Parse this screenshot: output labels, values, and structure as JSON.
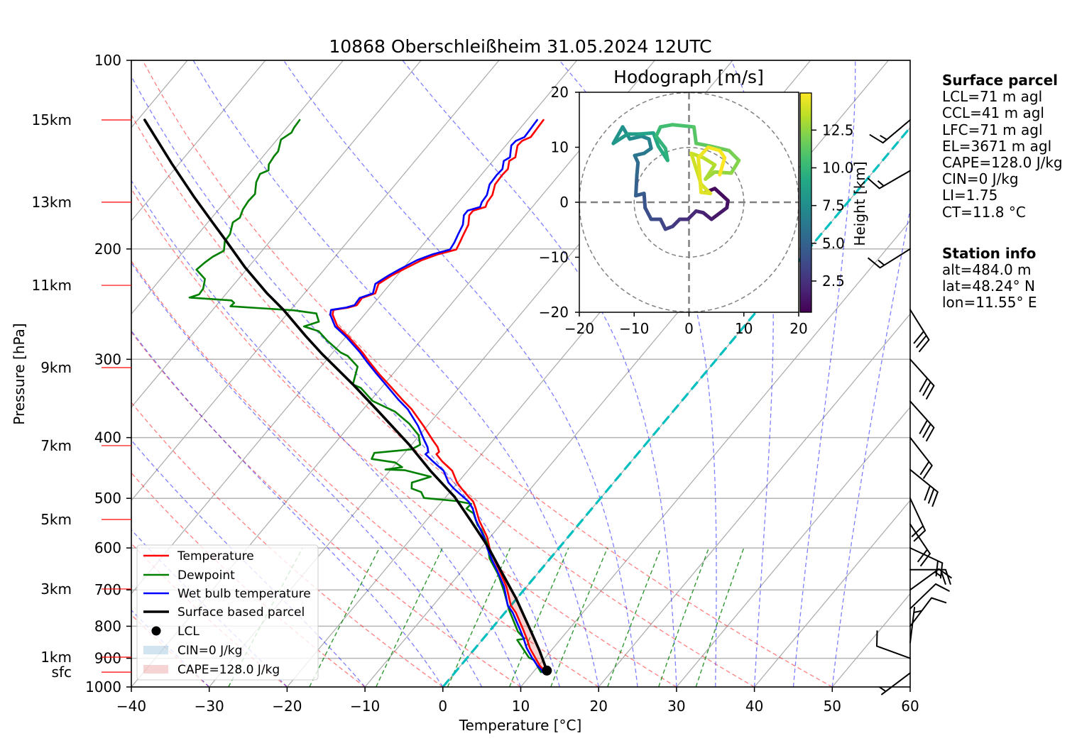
{
  "chart_data": [
    {
      "id": "skew-t",
      "type": "line",
      "title": "10868 Oberschleißheim 31.05.2024 12UTC",
      "xlabel": "Temperature [°C]",
      "ylabel": "Pressure [hPa]",
      "xlim": [
        -40,
        60
      ],
      "ylim": [
        1000,
        100
      ],
      "yscale": "log",
      "grid": true,
      "xticks": [
        -40,
        -30,
        -20,
        -10,
        0,
        10,
        20,
        30,
        40,
        50,
        60
      ],
      "xtick_labels": [
        "−40",
        "−30",
        "−20",
        "−10",
        "0",
        "10",
        "20",
        "30",
        "40",
        "50",
        "60"
      ],
      "yticks": [
        100,
        200,
        300,
        400,
        500,
        600,
        700,
        800,
        900,
        1000
      ],
      "ytick_labels": [
        "100",
        "200",
        "300",
        "400",
        "500",
        "600",
        "700",
        "800",
        "900",
        "1000"
      ],
      "height_labels": [
        {
          "label": "15km",
          "p": 124.5
        },
        {
          "label": "13km",
          "p": 168.4
        },
        {
          "label": "11km",
          "p": 228.6
        },
        {
          "label": "9km",
          "p": 309.3
        },
        {
          "label": "7km",
          "p": 412.0
        },
        {
          "label": "5km",
          "p": 540.4
        },
        {
          "label": "3km",
          "p": 697.7
        },
        {
          "label": "1km",
          "p": 896.2
        },
        {
          "label": "sfc",
          "p": 947
        }
      ],
      "height_label_color": "#ff0000",
      "series": [
        {
          "name": "Temperature",
          "color": "#ff0000",
          "p": [
            947,
            941.6,
            925.4,
            897.8,
            867.0,
            837.5,
            808.9,
            761.0,
            741.4,
            691.7,
            650.8,
            628.6,
            601.9,
            576.4,
            542.3,
            519.3,
            505.9,
            497.2,
            482.2,
            471.9,
            451.8,
            436.4,
            425.1,
            421.5,
            414.2,
            403.5,
            383.0,
            360.4,
            348.1,
            331.8,
            316.4,
            302.9,
            292.6,
            276.5,
            265.9,
            254.5,
            250.2,
            248.0,
            245.9,
            239.5,
            235.4,
            227.4,
            220.5,
            215.8,
            208.4,
            203.9,
            200.4,
            195.3,
            189.4,
            183.0,
            176.7,
            173.7,
            171.4,
            168.4,
            164.1,
            157.8,
            152.4,
            149.1,
            144.7,
            142.8,
            136.7,
            134.4,
            132.6,
            124.5
          ],
          "values": [
            11.7,
            11.3,
            10.2,
            8.7,
            7.0,
            5.6,
            4.1,
            1.4,
            0.0,
            -2.6,
            -5.3,
            -6.9,
            -8.8,
            -10.4,
            -13.2,
            -14.9,
            -16.0,
            -17.1,
            -18.9,
            -20.1,
            -22.0,
            -24.3,
            -25.8,
            -25.7,
            -26.4,
            -27.8,
            -30.5,
            -33.8,
            -36.0,
            -38.9,
            -41.8,
            -44.3,
            -46.2,
            -49.6,
            -52.2,
            -54.1,
            -54.5,
            -52.8,
            -52.0,
            -52.1,
            -50.9,
            -51.5,
            -50.7,
            -49.9,
            -48.5,
            -47.0,
            -45.2,
            -45.5,
            -45.9,
            -46.3,
            -47.2,
            -47.2,
            -46.0,
            -46.3,
            -46.4,
            -47.2,
            -47.3,
            -47.2,
            -47.9,
            -47.5,
            -48.5,
            -48.4,
            -47.7,
            -47.9
          ]
        },
        {
          "name": "Dewpoint",
          "color": "#008000",
          "p": [
            947,
            937.5,
            905.6,
            897.8,
            841.2,
            837.5,
            816.0,
            754.5,
            703.7,
            662.2,
            623.3,
            591.6,
            561.5,
            551.8,
            528.3,
            519.3,
            510.3,
            505.0,
            499.3,
            488.5,
            482.2,
            471.9,
            461.8,
            451.0,
            449.8,
            445.9,
            438.3,
            432.6,
            423.2,
            417.7,
            410.6,
            396.6,
            379.8,
            363.5,
            349.6,
            333.3,
            329.0,
            308.2,
            296.4,
            292.6,
            280.1,
            270.6,
            265.9,
            261.3,
            253.5,
            250.6,
            246.9,
            243.8,
            241.6,
            239.1,
            236.4,
            231.4,
            223.4,
            215.8,
            210.3,
            205.8,
            201.3,
            194.4,
            189.4,
            181.4,
            178.3,
            172.9,
            167.7,
            163.4,
            156.5,
            151.8,
            149.8,
            146.6,
            142.2,
            139.7,
            133.8,
            130.4,
            128.1,
            124.5
          ],
          "values": [
            11.0,
            10.5,
            8.8,
            7.9,
            4.5,
            5.3,
            3.7,
            0.3,
            -2.4,
            -4.9,
            -7.8,
            -9.6,
            -11.9,
            -12.9,
            -14.7,
            -16.1,
            -16.0,
            -18.2,
            -22.7,
            -23.7,
            -25.3,
            -25.9,
            -24.1,
            -28.1,
            -30.7,
            -28.8,
            -30.2,
            -33.6,
            -33.9,
            -29.5,
            -28.9,
            -30.1,
            -32.6,
            -35.7,
            -39.7,
            -42.6,
            -44.0,
            -45.3,
            -47.7,
            -49.0,
            -52.0,
            -54.1,
            -56.5,
            -55.1,
            -56.3,
            -59.5,
            -68.1,
            -68.0,
            -68.6,
            -74.3,
            -73.4,
            -73.5,
            -74.3,
            -76.4,
            -76.1,
            -75.7,
            -74.9,
            -75.8,
            -75.9,
            -76.8,
            -76.4,
            -76.9,
            -77.1,
            -77.0,
            -78.1,
            -78.5,
            -77.8,
            -78.4,
            -78.6,
            -78.6,
            -79.5,
            -78.9,
            -79.1,
            -79.2
          ]
        },
        {
          "name": "Wet bulb temperature",
          "color": "#0000ff",
          "p": [
            947,
            941.6,
            925.4,
            897.8,
            867.0,
            837.5,
            808.9,
            761.0,
            741.4,
            691.7,
            650.8,
            628.6,
            601.9,
            576.4,
            542.3,
            519.3,
            505.9,
            497.2,
            482.2,
            471.9,
            451.8,
            436.4,
            425.1,
            421.5,
            414.2,
            403.5,
            383.0,
            360.4,
            348.1,
            331.8,
            316.4,
            302.9,
            292.6,
            276.5,
            265.9,
            254.5,
            250.2,
            248.0,
            245.9,
            239.5,
            235.4,
            227.4,
            220.5,
            215.8,
            208.4,
            203.9,
            200.4,
            195.3,
            189.4,
            183.0,
            176.7,
            173.7,
            171.4,
            168.4,
            164.1,
            157.8,
            152.4,
            149.1,
            144.7,
            142.8,
            136.7,
            134.4,
            132.6,
            124.5
          ],
          "values": [
            11.2,
            11.0,
            9.9,
            8.3,
            6.6,
            5.2,
            3.7,
            1.0,
            -0.4,
            -2.9,
            -5.6,
            -7.2,
            -9.1,
            -10.8,
            -13.6,
            -15.3,
            -16.6,
            -17.8,
            -19.9,
            -21.2,
            -23.1,
            -25.5,
            -27.2,
            -27.1,
            -27.7,
            -28.9,
            -31.2,
            -34.3,
            -36.5,
            -39.3,
            -42.1,
            -44.6,
            -46.5,
            -49.9,
            -52.5,
            -54.4,
            -54.8,
            -53.1,
            -52.3,
            -52.4,
            -51.2,
            -51.9,
            -51.1,
            -50.4,
            -49.1,
            -47.7,
            -46.0,
            -46.2,
            -46.6,
            -47.0,
            -47.9,
            -47.9,
            -46.7,
            -47.0,
            -47.1,
            -47.9,
            -48.0,
            -47.9,
            -48.6,
            -48.2,
            -49.3,
            -49.2,
            -48.5,
            -48.7
          ]
        },
        {
          "name": "Surface based parcel",
          "color": "#000000",
          "p": [
            947,
            941.6,
            874.7,
            808.9,
            722.3,
            656.6,
            596.7,
            542.3,
            497.2,
            451.8,
            410.6,
            363.5,
            329.0,
            293.8,
            275.2,
            250.2,
            235.4,
            214.0,
            194.4,
            181.4,
            164.9,
            146.0,
            124.5
          ],
          "values": [
            11.7,
            11.6,
            8.5,
            5.0,
            -0.1,
            -4.7,
            -9.3,
            -14.3,
            -18.9,
            -24.8,
            -30.3,
            -37.8,
            -44.0,
            -51.3,
            -55.3,
            -60.9,
            -64.8,
            -70.4,
            -75.6,
            -79.4,
            -84.6,
            -91.0,
            -99.1
          ]
        }
      ],
      "lcl": {
        "label": "LCL",
        "p": 941.6,
        "t": 11.6,
        "color": "#000000"
      },
      "shading": [
        {
          "label": "CIN=0 J/kg",
          "value_jkg": 0,
          "color": "#1f77b4"
        },
        {
          "label": "CAPE=128.0 J/kg",
          "value_jkg": 128.0,
          "color": "#d62728",
          "p_range": [
            945,
            615
          ]
        }
      ],
      "legend": {
        "position": "lower-left",
        "entries": [
          "Temperature",
          "Dewpoint",
          "Wet bulb temperature",
          "Surface based parcel",
          "LCL",
          "CIN=0 J/kg",
          "CAPE=128.0 J/kg"
        ]
      },
      "reference_lines": {
        "isotherm_interval_c": 10,
        "dry_adiabats_c": [
          -40,
          -30,
          -20,
          -10,
          0,
          10,
          20,
          30,
          40,
          50
        ],
        "moist_adiabats_c": [
          -50,
          -40,
          -30,
          -20,
          -10,
          0,
          5,
          10,
          15,
          20,
          25,
          30,
          35,
          40,
          45,
          50
        ],
        "mixing_ratios_gkg": [
          0.4,
          1,
          2,
          4,
          7,
          10,
          16,
          24,
          32
        ],
        "mixing_ratio_top_hpa": 600,
        "freezing_isotherm_c": 0,
        "freezing_isotherm_color": "#00bfbf"
      },
      "wind_barbs": {
        "units": "kt",
        "levels": [
          {
            "p": 124.5,
            "speed": 15,
            "direction": 230
          },
          {
            "p": 150,
            "speed": 15,
            "direction": 240
          },
          {
            "p": 200,
            "speed": 15,
            "direction": 238
          },
          {
            "p": 250,
            "speed": 30,
            "direction": 148
          },
          {
            "p": 300,
            "speed": 30,
            "direction": 138
          },
          {
            "p": 350,
            "speed": 30,
            "direction": 138
          },
          {
            "p": 400,
            "speed": 20,
            "direction": 142
          },
          {
            "p": 450,
            "speed": 30,
            "direction": 129
          },
          {
            "p": 500,
            "speed": 20,
            "direction": 155
          },
          {
            "p": 550,
            "speed": 20,
            "direction": 146
          },
          {
            "p": 600,
            "speed": 20,
            "direction": 115
          },
          {
            "p": 650,
            "speed": 20,
            "direction": 90
          },
          {
            "p": 700,
            "speed": 15,
            "direction": 54
          },
          {
            "p": 750,
            "speed": 10,
            "direction": 46
          },
          {
            "p": 800,
            "speed": 10,
            "direction": 37
          },
          {
            "p": 850,
            "speed": 5,
            "direction": 7
          },
          {
            "p": 900,
            "speed": 10,
            "direction": 290
          },
          {
            "p": 950,
            "speed": 5,
            "direction": 233
          }
        ]
      }
    },
    {
      "id": "hodograph",
      "type": "line",
      "title": "Hodograph [m/s]",
      "xlabel": "",
      "ylabel": "",
      "xlim": [
        -20,
        20
      ],
      "ylim": [
        -20,
        20
      ],
      "xticks": [
        -20,
        -10,
        0,
        10,
        20
      ],
      "xtick_labels": [
        "−20",
        "−10",
        "0",
        "10",
        "20"
      ],
      "yticks": [
        20,
        10,
        0,
        -10,
        -20
      ],
      "ytick_labels": [
        "20",
        "10",
        "0",
        "−10",
        "−20"
      ],
      "range_rings": [
        10,
        20
      ],
      "colorbar": {
        "label": "Height [km]",
        "colormap": "viridis",
        "range": [
          0.43,
          14.96
        ],
        "ticks": [
          2.5,
          5.0,
          7.5,
          10.0,
          12.5
        ],
        "tick_labels": [
          "2.5",
          "5.0",
          "7.5",
          "10.0",
          "12.5"
        ],
        "position": "right"
      },
      "points": {
        "u": [
          3.0,
          4.7,
          7.1,
          6.9,
          4.1,
          2.6,
          1.3,
          -0.2,
          -1.7,
          -3.0,
          -4.3,
          -5.2,
          -6.9,
          -8.0,
          -8.2,
          -9.7,
          -9.5,
          -9.3,
          -9.9,
          -8.2,
          -6.9,
          -7.3,
          -8.6,
          -10.8,
          -12.1,
          -13.8,
          -11.2,
          -9.1,
          -6.5,
          -5.6,
          -3.9,
          -4.3,
          -6.0,
          -5.2,
          -3.0,
          0.9,
          1.3,
          3.9,
          7.3,
          9.1,
          7.7,
          4.7,
          3.0,
          4.7,
          2.6,
          0.4,
          2.2,
          3.9,
          2.2,
          1.7,
          3.5,
          5.6,
          6.5,
          5.6
        ],
        "v": [
          1.8,
          2.5,
          0.3,
          -1.0,
          -3.1,
          -1.9,
          -1.6,
          -3.1,
          -3.1,
          -4.4,
          -4.9,
          -3.1,
          -3.1,
          -1.0,
          1.6,
          1.2,
          5.0,
          7.2,
          8.5,
          8.9,
          9.8,
          11.5,
          12.0,
          11.5,
          13.7,
          10.7,
          12.4,
          12.4,
          12.6,
          10.2,
          7.6,
          9.8,
          12.0,
          13.7,
          14.1,
          13.7,
          10.7,
          10.2,
          9.4,
          7.6,
          5.3,
          5.5,
          4.2,
          6.8,
          8.1,
          8.9,
          3.3,
          1.6,
          1.8,
          8.1,
          10.0,
          9.4,
          8.1,
          5.0
        ],
        "height_km": [
          0.5,
          0.7,
          1.0,
          1.2,
          1.5,
          1.8,
          2.0,
          2.3,
          2.6,
          2.9,
          3.2,
          3.5,
          3.8,
          4.1,
          4.4,
          4.7,
          5.1,
          5.5,
          5.9,
          6.2,
          6.5,
          6.8,
          7.1,
          7.4,
          7.7,
          8.0,
          8.3,
          8.6,
          8.9,
          9.2,
          9.5,
          9.8,
          10.0,
          10.3,
          10.6,
          10.9,
          11.2,
          11.5,
          11.8,
          12.1,
          12.4,
          12.7,
          12.9,
          13.2,
          13.5,
          13.8,
          14.0,
          14.2,
          14.3,
          14.5,
          14.7,
          14.8,
          14.9,
          15.0
        ]
      }
    }
  ],
  "info_panel": {
    "surface_parcel": {
      "heading": "Surface parcel",
      "lines": [
        "LCL=71 m agl",
        "CCL=41 m agl",
        "LFC=71 m agl",
        "EL=3671 m agl",
        "CAPE=128.0 J/kg",
        "CIN=0 J/kg",
        "LI=1.75",
        "CT=11.8 °C"
      ]
    },
    "station_info": {
      "heading": "Station info",
      "lines": [
        "alt=484.0 m",
        "lat=48.24° N",
        "lon=11.55° E"
      ]
    }
  }
}
